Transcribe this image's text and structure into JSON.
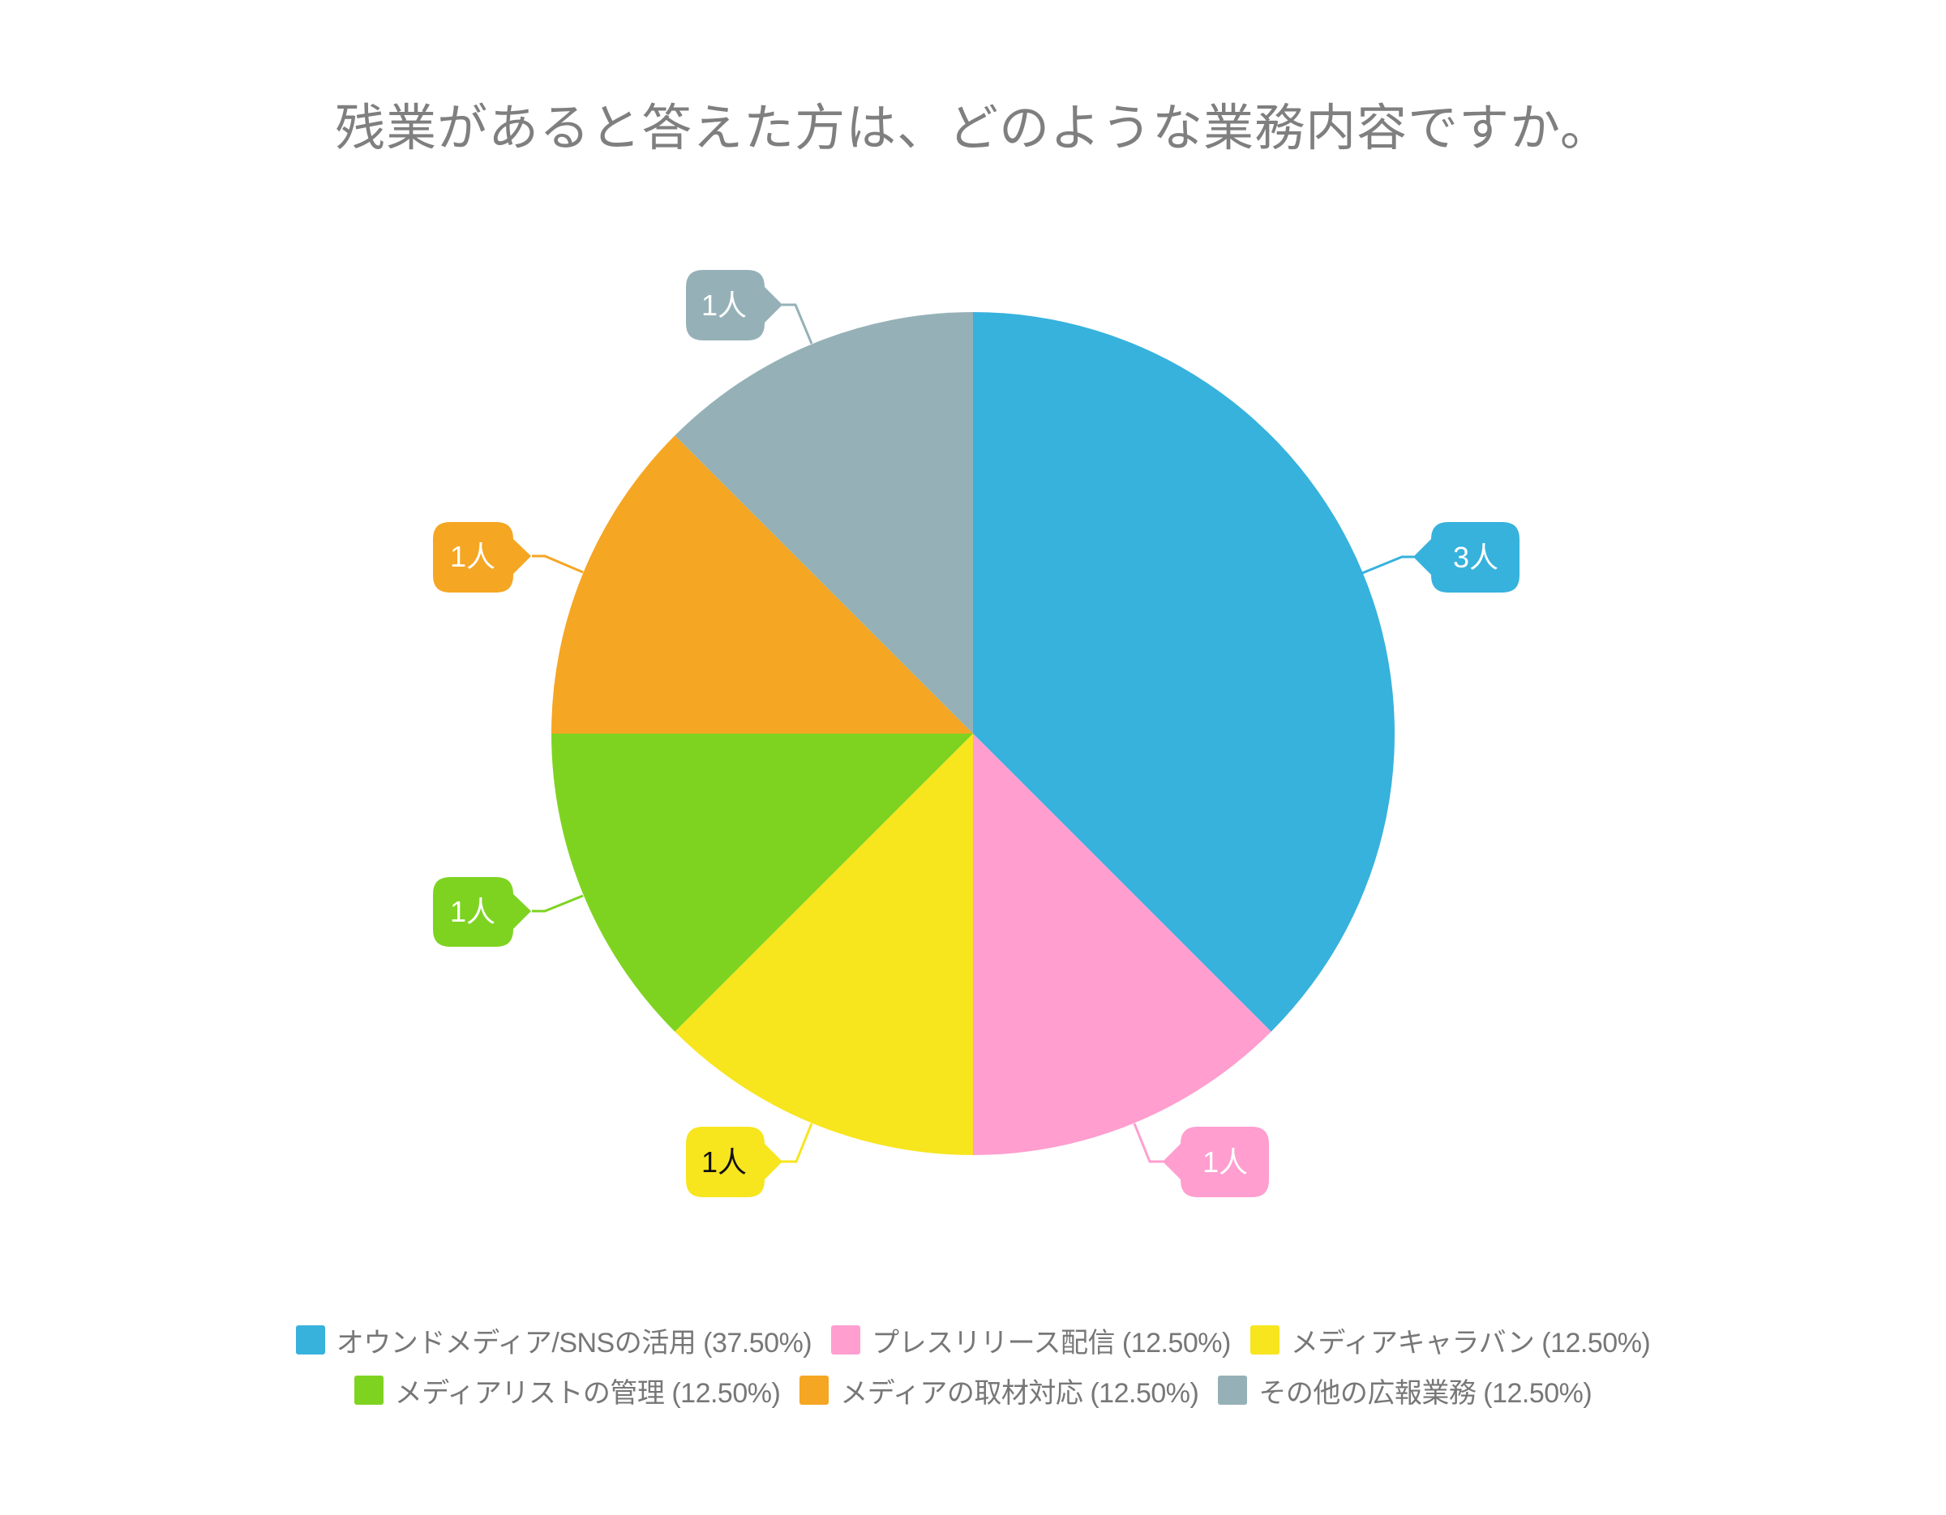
{
  "title": "残業があると答えた方は、どのような業務内容ですか。",
  "chart_data": {
    "type": "pie",
    "title": "残業があると答えた方は、どのような業務内容ですか。",
    "unit": "人",
    "categories": [
      "オウンドメディア/SNSの活用",
      "プレスリリース配信",
      "メディアキャラバン",
      "メディアリストの管理",
      "メディアの取材対応",
      "その他の広報業務"
    ],
    "values": [
      3,
      1,
      1,
      1,
      1,
      1
    ],
    "percentages": [
      37.5,
      12.5,
      12.5,
      12.5,
      12.5,
      12.5
    ],
    "colors": [
      "#36B2DD",
      "#FF9ECF",
      "#F7E51E",
      "#7ED321",
      "#F5A623",
      "#95B1B7"
    ],
    "start_angle_deg": 0,
    "direction": "clockwise",
    "legend_position": "bottom",
    "data_labels": [
      "3人",
      "1人",
      "1人",
      "1人",
      "1人",
      "1人"
    ]
  },
  "legend": {
    "items": [
      {
        "label": "オウンドメディア/SNSの活用 (37.50%)",
        "color": "#36B2DD"
      },
      {
        "label": "プレスリリース配信 (12.50%)",
        "color": "#FF9ECF"
      },
      {
        "label": "メディアキャラバン (12.50%)",
        "color": "#F7E51E"
      },
      {
        "label": "メディアリストの管理 (12.50%)",
        "color": "#7ED321"
      },
      {
        "label": "メディアの取材対応 (12.50%)",
        "color": "#F5A623"
      },
      {
        "label": "その他の広報業務 (12.50%)",
        "color": "#95B1B7"
      }
    ]
  },
  "labels": {
    "slice0": "3人",
    "slice1": "1人",
    "slice2": "1人",
    "slice3": "1人",
    "slice4": "1人",
    "slice5": "1人"
  }
}
